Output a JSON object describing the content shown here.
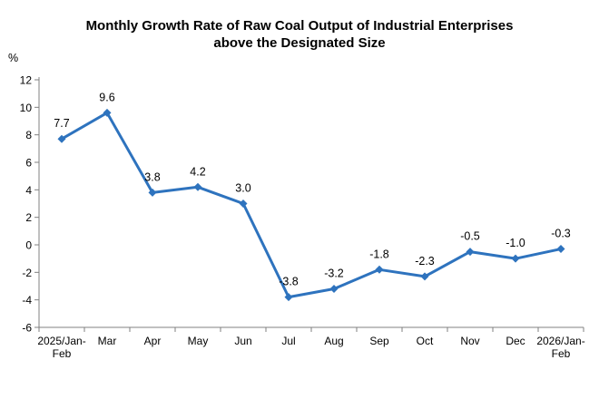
{
  "chart_data": {
    "type": "line",
    "title": "Monthly Growth Rate of Raw Coal Output of Industrial Enterprises above the Designated Size",
    "title_lines": [
      "Monthly Growth Rate of Raw Coal Output of Industrial Enterprises",
      "above the Designated Size"
    ],
    "ylabel": "%",
    "xlabel": "",
    "categories": [
      [
        "2025/Jan-",
        "Feb"
      ],
      [
        "Mar"
      ],
      [
        "Apr"
      ],
      [
        "May"
      ],
      [
        "Jun"
      ],
      [
        "Jul"
      ],
      [
        "Aug"
      ],
      [
        "Sep"
      ],
      [
        "Oct"
      ],
      [
        "Nov"
      ],
      [
        "Dec"
      ],
      [
        "2026/Jan-",
        "Feb"
      ]
    ],
    "values": [
      7.7,
      9.6,
      3.8,
      4.2,
      3.0,
      -3.8,
      -3.2,
      -1.8,
      -2.3,
      -0.5,
      -1.0,
      -0.3
    ],
    "point_labels": [
      "7.7",
      "9.6",
      "3.8",
      "4.2",
      "3.0",
      "-3.8",
      "-3.2",
      "-1.8",
      "-2.3",
      "-0.5",
      "-1.0",
      "-0.3"
    ],
    "ylim": [
      -6,
      12
    ],
    "ytick_step": 2,
    "ytick_labels": [
      "12",
      "10",
      "8",
      "6",
      "4",
      "2",
      "0",
      "-2",
      "-4",
      "-6"
    ],
    "grid": false,
    "legend": "none",
    "marker": "diamond",
    "colors": {
      "line": "#2E73BE",
      "marker": "#2E73BE",
      "axis": "#808080",
      "text": "#000000",
      "background": "#FFFFFF"
    }
  }
}
